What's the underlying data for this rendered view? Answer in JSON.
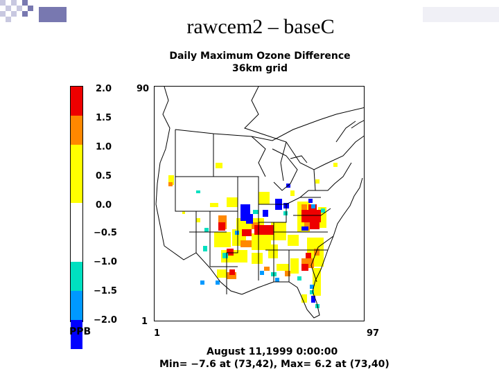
{
  "slide": {
    "title": "rawcem2 – baseC"
  },
  "plot": {
    "title_line1": "Daily Maximum Ozone Difference",
    "title_line2": "36km grid",
    "date_line": "August 11,1999 0:00:00",
    "minmax_line": "Min=   −7.6 at (73,42), Max=    6.2 at (73,40)",
    "axis": {
      "y_top": "90",
      "y_bottom": "1",
      "x_left": "1",
      "x_right": "97"
    }
  },
  "legend": {
    "unit": "PPB",
    "ticks": [
      "2.0",
      "1.5",
      "1.0",
      "0.5",
      "0.0",
      "−0.5",
      "−1.0",
      "−1.5",
      "−2.0"
    ],
    "colors": [
      "#ee0000",
      "#ff8800",
      "#ffff00",
      "#ffffff",
      "#00e0c0",
      "#0099ff",
      "#0000ff"
    ]
  }
}
